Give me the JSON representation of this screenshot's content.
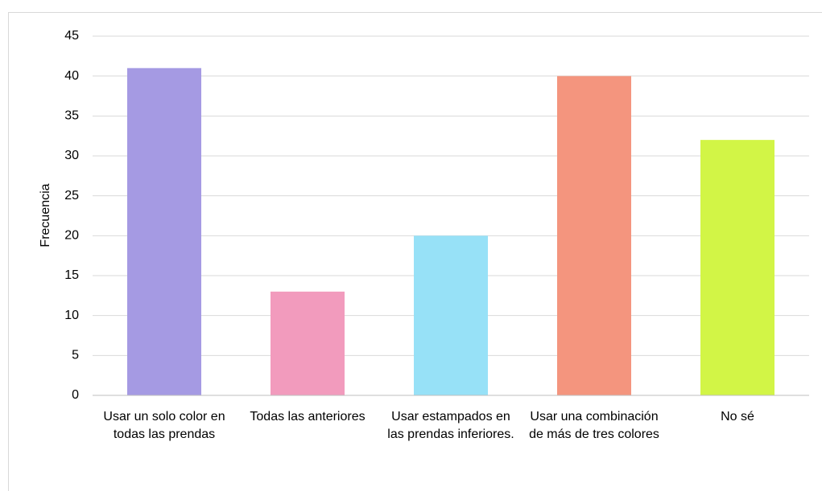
{
  "chart_data": {
    "type": "bar",
    "y_label": "Frecuencia",
    "categories": [
      "Usar un solo color en todas las prendas",
      "Todas las anteriores",
      "Usar estampados en las prendas inferiores.",
      "Usar una combinación de más de tres colores",
      "No sé"
    ],
    "values": [
      41,
      13,
      20,
      40,
      32
    ],
    "colors": [
      "#a59ae3",
      "#f29bbd",
      "#97e1f7",
      "#f4957e",
      "#d2f546"
    ],
    "ylim": [
      0,
      45
    ],
    "yticks": [
      0,
      5,
      10,
      15,
      20,
      25,
      30,
      35,
      40,
      45
    ],
    "grid": true
  }
}
